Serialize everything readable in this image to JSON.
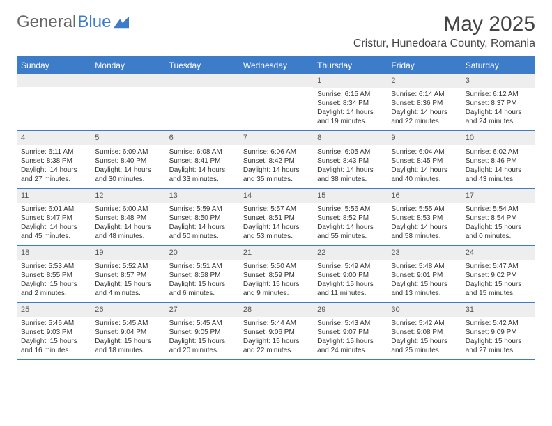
{
  "logo": {
    "part1": "General",
    "part2": "Blue"
  },
  "title": "May 2025",
  "location": "Cristur, Hunedoara County, Romania",
  "colors": {
    "header_bg": "#3d7cc9",
    "header_text": "#ffffff",
    "daynum_bg": "#eeeeee",
    "text": "#333333",
    "border": "#3d7cc9"
  },
  "daysOfWeek": [
    "Sunday",
    "Monday",
    "Tuesday",
    "Wednesday",
    "Thursday",
    "Friday",
    "Saturday"
  ],
  "weeks": [
    [
      {
        "empty": true
      },
      {
        "empty": true
      },
      {
        "empty": true
      },
      {
        "empty": true
      },
      {
        "num": "1",
        "sunrise": "Sunrise: 6:15 AM",
        "sunset": "Sunset: 8:34 PM",
        "daylight": "Daylight: 14 hours and 19 minutes."
      },
      {
        "num": "2",
        "sunrise": "Sunrise: 6:14 AM",
        "sunset": "Sunset: 8:36 PM",
        "daylight": "Daylight: 14 hours and 22 minutes."
      },
      {
        "num": "3",
        "sunrise": "Sunrise: 6:12 AM",
        "sunset": "Sunset: 8:37 PM",
        "daylight": "Daylight: 14 hours and 24 minutes."
      }
    ],
    [
      {
        "num": "4",
        "sunrise": "Sunrise: 6:11 AM",
        "sunset": "Sunset: 8:38 PM",
        "daylight": "Daylight: 14 hours and 27 minutes."
      },
      {
        "num": "5",
        "sunrise": "Sunrise: 6:09 AM",
        "sunset": "Sunset: 8:40 PM",
        "daylight": "Daylight: 14 hours and 30 minutes."
      },
      {
        "num": "6",
        "sunrise": "Sunrise: 6:08 AM",
        "sunset": "Sunset: 8:41 PM",
        "daylight": "Daylight: 14 hours and 33 minutes."
      },
      {
        "num": "7",
        "sunrise": "Sunrise: 6:06 AM",
        "sunset": "Sunset: 8:42 PM",
        "daylight": "Daylight: 14 hours and 35 minutes."
      },
      {
        "num": "8",
        "sunrise": "Sunrise: 6:05 AM",
        "sunset": "Sunset: 8:43 PM",
        "daylight": "Daylight: 14 hours and 38 minutes."
      },
      {
        "num": "9",
        "sunrise": "Sunrise: 6:04 AM",
        "sunset": "Sunset: 8:45 PM",
        "daylight": "Daylight: 14 hours and 40 minutes."
      },
      {
        "num": "10",
        "sunrise": "Sunrise: 6:02 AM",
        "sunset": "Sunset: 8:46 PM",
        "daylight": "Daylight: 14 hours and 43 minutes."
      }
    ],
    [
      {
        "num": "11",
        "sunrise": "Sunrise: 6:01 AM",
        "sunset": "Sunset: 8:47 PM",
        "daylight": "Daylight: 14 hours and 45 minutes."
      },
      {
        "num": "12",
        "sunrise": "Sunrise: 6:00 AM",
        "sunset": "Sunset: 8:48 PM",
        "daylight": "Daylight: 14 hours and 48 minutes."
      },
      {
        "num": "13",
        "sunrise": "Sunrise: 5:59 AM",
        "sunset": "Sunset: 8:50 PM",
        "daylight": "Daylight: 14 hours and 50 minutes."
      },
      {
        "num": "14",
        "sunrise": "Sunrise: 5:57 AM",
        "sunset": "Sunset: 8:51 PM",
        "daylight": "Daylight: 14 hours and 53 minutes."
      },
      {
        "num": "15",
        "sunrise": "Sunrise: 5:56 AM",
        "sunset": "Sunset: 8:52 PM",
        "daylight": "Daylight: 14 hours and 55 minutes."
      },
      {
        "num": "16",
        "sunrise": "Sunrise: 5:55 AM",
        "sunset": "Sunset: 8:53 PM",
        "daylight": "Daylight: 14 hours and 58 minutes."
      },
      {
        "num": "17",
        "sunrise": "Sunrise: 5:54 AM",
        "sunset": "Sunset: 8:54 PM",
        "daylight": "Daylight: 15 hours and 0 minutes."
      }
    ],
    [
      {
        "num": "18",
        "sunrise": "Sunrise: 5:53 AM",
        "sunset": "Sunset: 8:55 PM",
        "daylight": "Daylight: 15 hours and 2 minutes."
      },
      {
        "num": "19",
        "sunrise": "Sunrise: 5:52 AM",
        "sunset": "Sunset: 8:57 PM",
        "daylight": "Daylight: 15 hours and 4 minutes."
      },
      {
        "num": "20",
        "sunrise": "Sunrise: 5:51 AM",
        "sunset": "Sunset: 8:58 PM",
        "daylight": "Daylight: 15 hours and 6 minutes."
      },
      {
        "num": "21",
        "sunrise": "Sunrise: 5:50 AM",
        "sunset": "Sunset: 8:59 PM",
        "daylight": "Daylight: 15 hours and 9 minutes."
      },
      {
        "num": "22",
        "sunrise": "Sunrise: 5:49 AM",
        "sunset": "Sunset: 9:00 PM",
        "daylight": "Daylight: 15 hours and 11 minutes."
      },
      {
        "num": "23",
        "sunrise": "Sunrise: 5:48 AM",
        "sunset": "Sunset: 9:01 PM",
        "daylight": "Daylight: 15 hours and 13 minutes."
      },
      {
        "num": "24",
        "sunrise": "Sunrise: 5:47 AM",
        "sunset": "Sunset: 9:02 PM",
        "daylight": "Daylight: 15 hours and 15 minutes."
      }
    ],
    [
      {
        "num": "25",
        "sunrise": "Sunrise: 5:46 AM",
        "sunset": "Sunset: 9:03 PM",
        "daylight": "Daylight: 15 hours and 16 minutes."
      },
      {
        "num": "26",
        "sunrise": "Sunrise: 5:45 AM",
        "sunset": "Sunset: 9:04 PM",
        "daylight": "Daylight: 15 hours and 18 minutes."
      },
      {
        "num": "27",
        "sunrise": "Sunrise: 5:45 AM",
        "sunset": "Sunset: 9:05 PM",
        "daylight": "Daylight: 15 hours and 20 minutes."
      },
      {
        "num": "28",
        "sunrise": "Sunrise: 5:44 AM",
        "sunset": "Sunset: 9:06 PM",
        "daylight": "Daylight: 15 hours and 22 minutes."
      },
      {
        "num": "29",
        "sunrise": "Sunrise: 5:43 AM",
        "sunset": "Sunset: 9:07 PM",
        "daylight": "Daylight: 15 hours and 24 minutes."
      },
      {
        "num": "30",
        "sunrise": "Sunrise: 5:42 AM",
        "sunset": "Sunset: 9:08 PM",
        "daylight": "Daylight: 15 hours and 25 minutes."
      },
      {
        "num": "31",
        "sunrise": "Sunrise: 5:42 AM",
        "sunset": "Sunset: 9:09 PM",
        "daylight": "Daylight: 15 hours and 27 minutes."
      }
    ]
  ]
}
